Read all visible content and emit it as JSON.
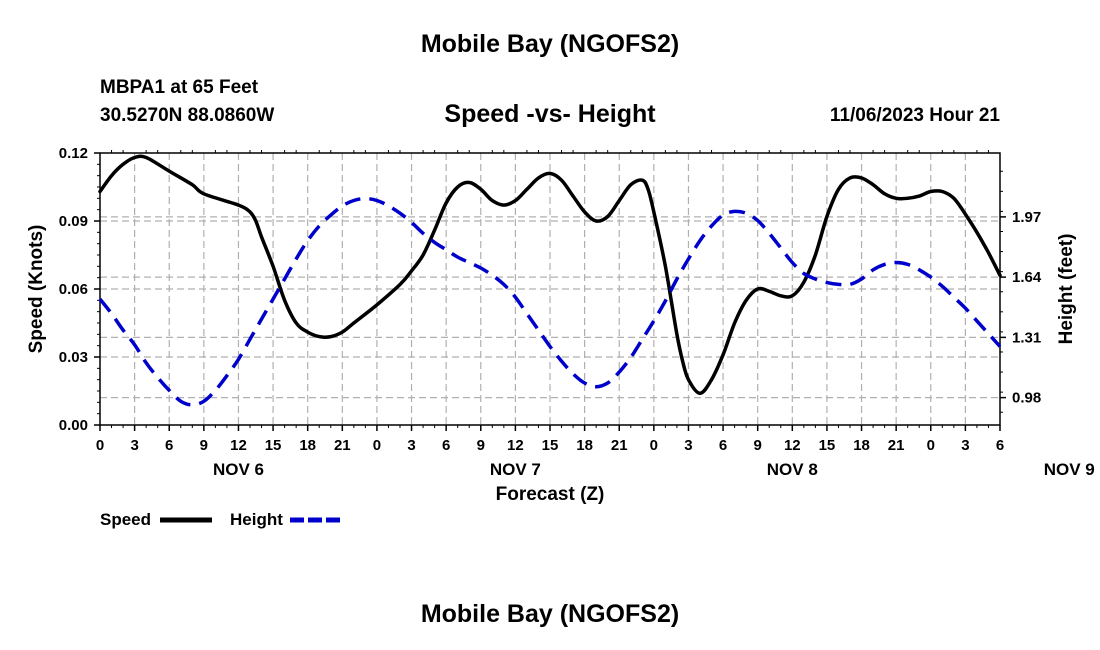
{
  "header": {
    "title": "Mobile Bay (NGOFS2)",
    "station": "MBPA1 at 65 Feet",
    "coords": "30.5270N  88.0860W",
    "subtitle": "Speed -vs- Height",
    "datetime": "11/06/2023 Hour 21"
  },
  "footer": {
    "title": "Mobile Bay (NGOFS2)"
  },
  "legend": {
    "speed_label": "Speed",
    "height_label": "Height"
  },
  "colors": {
    "speed": "#000000",
    "height": "#0000cc",
    "grid": "#b0b0b0"
  },
  "chart_data": {
    "type": "line",
    "xlabel": "Forecast (Z)",
    "ylabel_left": "Speed (Knots)",
    "ylabel_right": "Height (feet)",
    "ylim_left": [
      0,
      0.12
    ],
    "ylim_right": [
      0.83,
      2.32
    ],
    "left_ticks": [
      "0.00",
      "0.03",
      "0.06",
      "0.09",
      "0.12"
    ],
    "right_ticks": [
      "0.98",
      "1.31",
      "1.64",
      "1.97"
    ],
    "x_ticks": [
      "0",
      "3",
      "6",
      "9",
      "12",
      "15",
      "18",
      "21",
      "0",
      "3",
      "6",
      "9",
      "12",
      "15",
      "18",
      "21",
      "0",
      "3",
      "6",
      "9",
      "12",
      "15",
      "18",
      "21",
      "0",
      "3",
      "6"
    ],
    "date_labels": [
      {
        "label": "NOV 6",
        "hour": 12
      },
      {
        "label": "NOV 7",
        "hour": 36
      },
      {
        "label": "NOV 8",
        "hour": 60
      },
      {
        "label": "NOV 9",
        "hour": 84
      }
    ],
    "x_range_hours": [
      0,
      78
    ],
    "grid": true,
    "legend_position": "bottom-left",
    "series": [
      {
        "name": "Speed",
        "axis": "left",
        "points": [
          [
            0,
            0.103
          ],
          [
            1,
            0.11
          ],
          [
            2,
            0.115
          ],
          [
            3,
            0.118
          ],
          [
            4,
            0.118
          ],
          [
            6,
            0.112
          ],
          [
            8,
            0.106
          ],
          [
            9,
            0.102
          ],
          [
            12,
            0.097
          ],
          [
            13,
            0.094
          ],
          [
            13.5,
            0.09
          ],
          [
            14,
            0.083
          ],
          [
            15,
            0.07
          ],
          [
            16,
            0.055
          ],
          [
            17,
            0.045
          ],
          [
            18,
            0.041
          ],
          [
            19,
            0.039
          ],
          [
            20,
            0.039
          ],
          [
            21,
            0.041
          ],
          [
            22,
            0.045
          ],
          [
            24,
            0.053
          ],
          [
            26,
            0.062
          ],
          [
            27,
            0.068
          ],
          [
            28,
            0.075
          ],
          [
            29,
            0.086
          ],
          [
            30,
            0.098
          ],
          [
            31,
            0.105
          ],
          [
            32,
            0.107
          ],
          [
            33,
            0.104
          ],
          [
            34,
            0.099
          ],
          [
            35,
            0.097
          ],
          [
            36,
            0.099
          ],
          [
            37,
            0.104
          ],
          [
            38,
            0.109
          ],
          [
            39,
            0.111
          ],
          [
            40,
            0.108
          ],
          [
            41,
            0.101
          ],
          [
            42,
            0.094
          ],
          [
            43,
            0.09
          ],
          [
            44,
            0.092
          ],
          [
            45,
            0.099
          ],
          [
            46,
            0.106
          ],
          [
            47,
            0.108
          ],
          [
            47.5,
            0.104
          ],
          [
            48,
            0.094
          ],
          [
            49,
            0.07
          ],
          [
            50,
            0.04
          ],
          [
            50.5,
            0.028
          ],
          [
            51,
            0.02
          ],
          [
            52,
            0.014
          ],
          [
            53,
            0.02
          ],
          [
            54,
            0.031
          ],
          [
            55,
            0.045
          ],
          [
            56,
            0.055
          ],
          [
            57,
            0.06
          ],
          [
            58,
            0.059
          ],
          [
            59,
            0.057
          ],
          [
            60,
            0.057
          ],
          [
            61,
            0.063
          ],
          [
            62,
            0.075
          ],
          [
            63,
            0.092
          ],
          [
            64,
            0.104
          ],
          [
            65,
            0.109
          ],
          [
            66,
            0.109
          ],
          [
            67,
            0.106
          ],
          [
            68,
            0.102
          ],
          [
            69,
            0.1
          ],
          [
            70,
            0.1
          ],
          [
            71,
            0.101
          ],
          [
            72,
            0.103
          ],
          [
            73,
            0.103
          ],
          [
            74,
            0.1
          ],
          [
            75,
            0.093
          ],
          [
            76,
            0.085
          ],
          [
            77,
            0.076
          ],
          [
            78,
            0.066
          ]
        ]
      },
      {
        "name": "Height",
        "axis": "right",
        "points": [
          [
            0,
            1.52
          ],
          [
            1,
            1.44
          ],
          [
            2,
            1.35
          ],
          [
            3,
            1.27
          ],
          [
            4,
            1.17
          ],
          [
            5,
            1.09
          ],
          [
            6,
            1.02
          ],
          [
            7,
            0.96
          ],
          [
            8,
            0.94
          ],
          [
            9,
            0.96
          ],
          [
            10,
            1.02
          ],
          [
            11,
            1.1
          ],
          [
            12,
            1.19
          ],
          [
            13,
            1.3
          ],
          [
            14,
            1.41
          ],
          [
            15,
            1.52
          ],
          [
            16,
            1.63
          ],
          [
            17,
            1.74
          ],
          [
            18,
            1.84
          ],
          [
            19,
            1.92
          ],
          [
            20,
            1.98
          ],
          [
            21,
            2.03
          ],
          [
            22,
            2.06
          ],
          [
            23,
            2.07
          ],
          [
            24,
            2.06
          ],
          [
            25,
            2.03
          ],
          [
            26,
            1.99
          ],
          [
            27,
            1.94
          ],
          [
            28,
            1.88
          ],
          [
            29,
            1.83
          ],
          [
            30,
            1.79
          ],
          [
            31,
            1.75
          ],
          [
            32,
            1.72
          ],
          [
            33,
            1.69
          ],
          [
            34,
            1.65
          ],
          [
            35,
            1.6
          ],
          [
            36,
            1.53
          ],
          [
            37,
            1.44
          ],
          [
            38,
            1.35
          ],
          [
            39,
            1.26
          ],
          [
            40,
            1.18
          ],
          [
            41,
            1.11
          ],
          [
            42,
            1.06
          ],
          [
            43,
            1.04
          ],
          [
            44,
            1.06
          ],
          [
            45,
            1.12
          ],
          [
            46,
            1.2
          ],
          [
            47,
            1.3
          ],
          [
            48,
            1.4
          ],
          [
            49,
            1.51
          ],
          [
            50,
            1.63
          ],
          [
            51,
            1.74
          ],
          [
            52,
            1.84
          ],
          [
            53,
            1.92
          ],
          [
            54,
            1.98
          ],
          [
            55,
            2.0
          ],
          [
            56,
            1.99
          ],
          [
            57,
            1.95
          ],
          [
            58,
            1.88
          ],
          [
            59,
            1.8
          ],
          [
            60,
            1.72
          ],
          [
            61,
            1.66
          ],
          [
            62,
            1.63
          ],
          [
            63,
            1.61
          ],
          [
            64,
            1.6
          ],
          [
            65,
            1.6
          ],
          [
            66,
            1.63
          ],
          [
            67,
            1.68
          ],
          [
            68,
            1.71
          ],
          [
            69,
            1.72
          ],
          [
            70,
            1.71
          ],
          [
            71,
            1.68
          ],
          [
            72,
            1.64
          ],
          [
            73,
            1.59
          ],
          [
            74,
            1.53
          ],
          [
            75,
            1.47
          ],
          [
            76,
            1.4
          ],
          [
            77,
            1.33
          ],
          [
            78,
            1.26
          ]
        ]
      }
    ]
  }
}
